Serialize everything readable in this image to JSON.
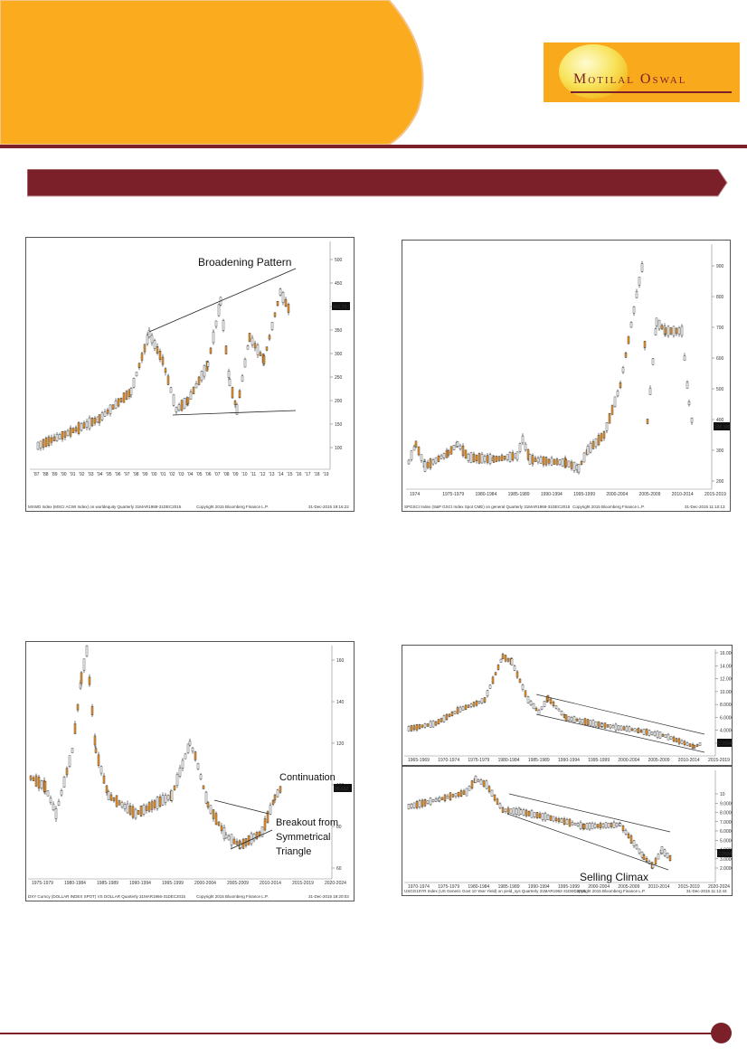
{
  "logo": {
    "text": "Motilal Oswal"
  },
  "banner": {
    "title": ""
  },
  "page": {
    "number": ""
  },
  "colors": {
    "orange": "#fbab1e",
    "maroon": "#7b1f29",
    "candle_up": "#f39a2c",
    "candle_down": "#222222"
  },
  "charts": [
    {
      "id": "chart1",
      "annotations": [
        "Broadening Pattern"
      ],
      "price_label": "402.70",
      "y_ticks": [
        "500",
        "450",
        "400",
        "350",
        "300",
        "250",
        "200",
        "150",
        "100"
      ],
      "x_ticks": [
        "'87",
        "'88",
        "'89",
        "'90",
        "'91",
        "'92",
        "'93",
        "'94",
        "'95",
        "'96",
        "'97",
        "'98",
        "'99",
        "'00",
        "'01",
        "'02",
        "'03",
        "'04",
        "'05",
        "'06",
        "'07",
        "'08",
        "'09",
        "'10",
        "'11",
        "'12",
        "'13",
        "'14",
        "'15",
        "'16",
        "'17",
        "'18",
        "'19"
      ],
      "footer_left": "MXWD Index (MSCI ACWI Index) on worldequity  Quarterly 31MAR1988-31DEC2015",
      "footer_mid": "Copyright 2015 Bloomberg Finance L.P.",
      "footer_right": "31-Dec-2015 19:16:22"
    },
    {
      "id": "chart2",
      "annotations": [],
      "price_label": "296.106",
      "y_ticks": [
        "900",
        "800",
        "700",
        "600",
        "500",
        "400",
        "300",
        "200"
      ],
      "x_ticks": [
        "1974",
        "1975-1979",
        "1980-1984",
        "1985-1989",
        "1990-1994",
        "1995-1999",
        "2000-2004",
        "2005-2009",
        "2010-2014",
        "2015-2019"
      ],
      "footer_left": "SPGSCI Index (S&P GSCI Index Spot CME) on general  Quarterly 31MAR1969-31DEC2015",
      "footer_mid": "Copyright 2015 Bloomberg Finance L.P.",
      "footer_right": "31-Dec-2015 11:10:13"
    },
    {
      "id": "chart3",
      "annotations": [
        "Continuation",
        "Breakout from",
        "Symmetrical",
        "Triangle"
      ],
      "price_label": "98.632",
      "y_ticks": [
        "160",
        "140",
        "120",
        "100",
        "80",
        "60"
      ],
      "x_ticks": [
        "1975-1979",
        "1980-1984",
        "1985-1989",
        "1990-1994",
        "1995-1999",
        "2000-2004",
        "2005-2009",
        "2010-2014",
        "2015-2019",
        "2020-2024"
      ],
      "footer_left": "DXY Curncy (DOLLAR INDEX SPOT) VS DOLLAR  Quarterly 31MAR1966-31DEC2015",
      "footer_mid": "Copyright 2015 Bloomberg Finance L.P.",
      "footer_right": "31-Dec-2015 19:20:03"
    },
    {
      "id": "chart4a",
      "annotations": [],
      "price_label": "2.2694",
      "y_ticks": [
        "16.0000",
        "14.0000",
        "12.0000",
        "10.0000",
        "8.0000",
        "6.0000",
        "4.0000",
        "2.0000"
      ],
      "x_ticks": [
        "1965-1969",
        "1970-1974",
        "1975-1979",
        "1980-1984",
        "1985-1989",
        "1990-1994",
        "1995-1999",
        "2000-2004",
        "2005-2009",
        "2010-2014",
        "2015-2019"
      ],
      "footer_left": "",
      "footer_mid": "",
      "footer_right": ""
    },
    {
      "id": "chart4b",
      "annotations": [
        "Selling Climax"
      ],
      "price_label": "2.2694",
      "y_ticks": [
        "10",
        "9.0000",
        "8.0000",
        "7.0000",
        "6.0000",
        "5.0000",
        "4.0000",
        "3.0000",
        "2.0000"
      ],
      "x_ticks": [
        "1970-1974",
        "1975-1979",
        "1980-1984",
        "1985-1989",
        "1990-1994",
        "1995-1999",
        "2000-2004",
        "2005-2009",
        "2010-2014",
        "2015-2019",
        "2020-2024"
      ],
      "footer_left": "USGG10YR Index (US Generic Govt 10 Year Yield) on yield_sys  Quarterly 31MAR1962-31DEC2015",
      "footer_mid": "Copyright 2015 Bloomberg Finance L.P.",
      "footer_right": "31-Dec-2015 11:12:43"
    }
  ]
}
